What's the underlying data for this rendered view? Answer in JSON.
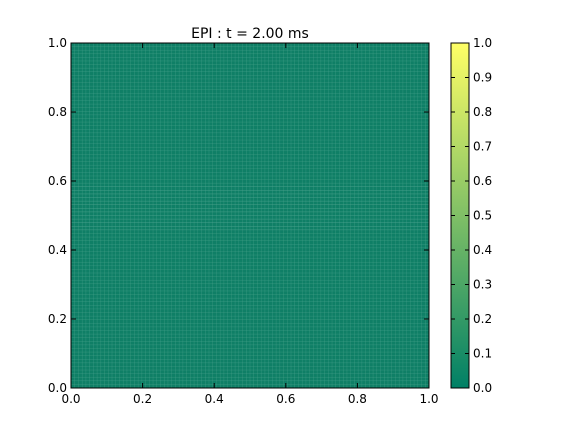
{
  "chart_data": {
    "type": "heatmap",
    "title": "EPI : t = 2.00 ms",
    "xlabel": "",
    "ylabel": "",
    "xlim": [
      0.0,
      1.0
    ],
    "ylim": [
      0.0,
      1.0
    ],
    "xticks": [
      "0.0",
      "0.2",
      "0.4",
      "0.6",
      "0.8",
      "1.0"
    ],
    "yticks": [
      "0.0",
      "0.2",
      "0.4",
      "0.6",
      "0.8",
      "1.0"
    ],
    "field_value": 0.0,
    "grid": true,
    "colormap": "summer",
    "colorbar": {
      "min": 0.0,
      "max": 1.0,
      "placement": "right",
      "ticks": [
        "0.0",
        "0.1",
        "0.2",
        "0.3",
        "0.4",
        "0.5",
        "0.6",
        "0.7",
        "0.8",
        "0.9",
        "1.0"
      ]
    }
  },
  "colors": {
    "field": "#0f7f66",
    "colormap_low": "#008066",
    "colormap_high": "#ffff66",
    "grid_line": "#4fa58f"
  }
}
